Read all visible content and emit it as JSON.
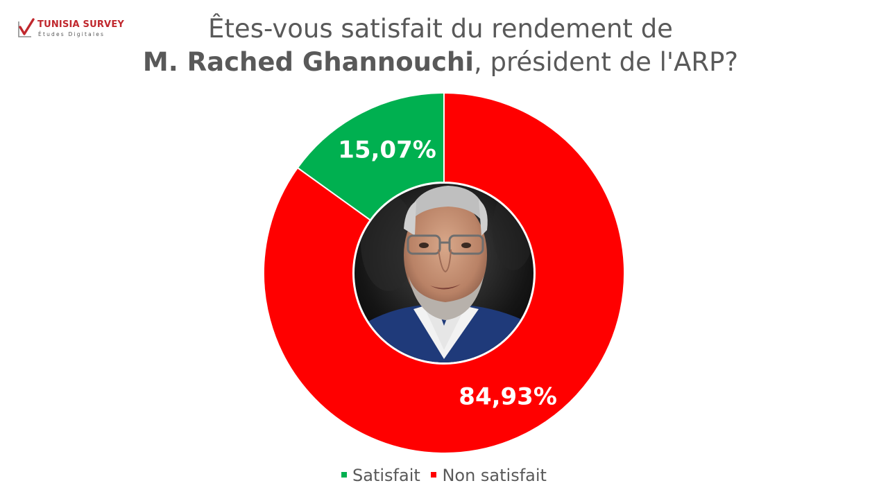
{
  "brand": {
    "name": "TUNISIA SURVEY",
    "tagline": "Études Digitales"
  },
  "title": {
    "line1": "Êtes-vous satisfait du rendement de",
    "line2_bold": "M. Rached Ghannouchi",
    "line2_rest": ", président de l'ARP?"
  },
  "colors": {
    "satisfait": "#00b050",
    "non_satisfait": "#ff0000",
    "title": "#595959",
    "brand": "#c0272d"
  },
  "chart_data": {
    "type": "pie",
    "variant": "donut",
    "title": "Êtes-vous satisfait du rendement de M. Rached Ghannouchi, président de l'ARP?",
    "series": [
      {
        "name": "Satisfait",
        "value": 15.07,
        "label": "15,07%",
        "color": "#00b050"
      },
      {
        "name": "Non satisfait",
        "value": 84.93,
        "label": "84,93%",
        "color": "#ff0000"
      }
    ],
    "legend": "bottom",
    "center_image": "portrait photo"
  }
}
